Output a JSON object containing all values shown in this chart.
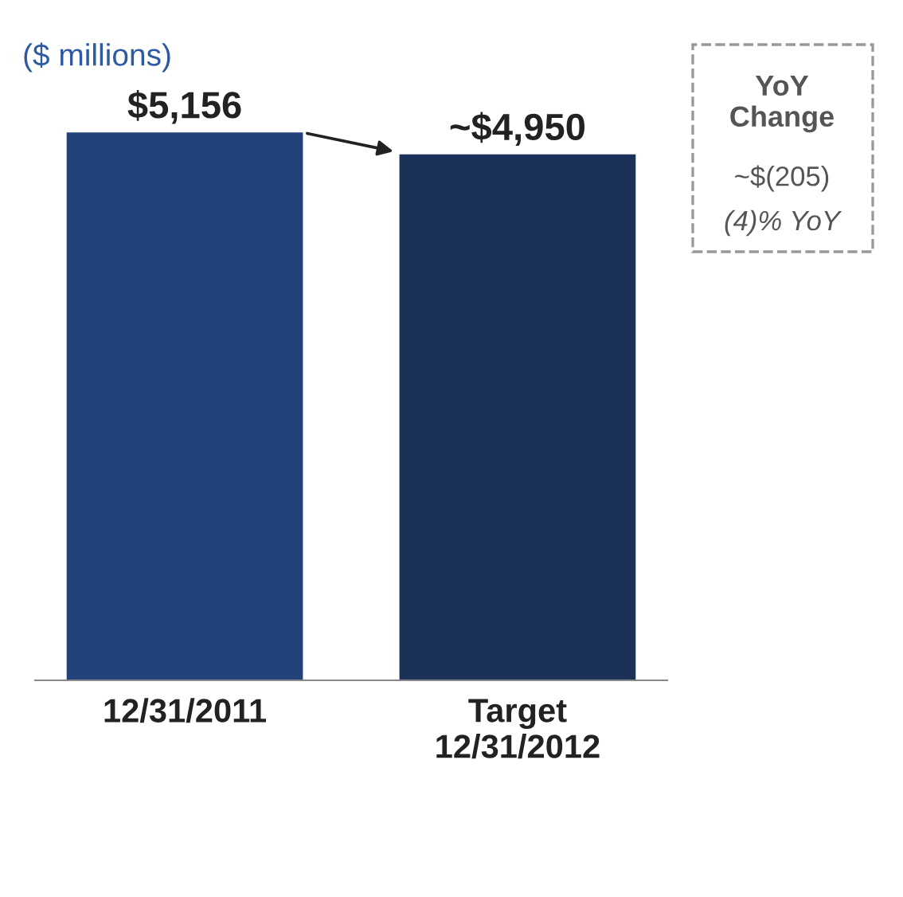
{
  "chart_data": {
    "type": "bar",
    "categories": [
      "12/31/2011",
      "Target\n12/31/2012"
    ],
    "values": [
      5156,
      4950
    ],
    "colors": [
      "#22427c",
      "#1b3158"
    ],
    "value_labels": [
      "$5,156",
      "~$4,950"
    ],
    "annotations": [
      "($ millions)",
      "YoY\nChange",
      "~$(205)",
      "(4)% YoY"
    ]
  }
}
